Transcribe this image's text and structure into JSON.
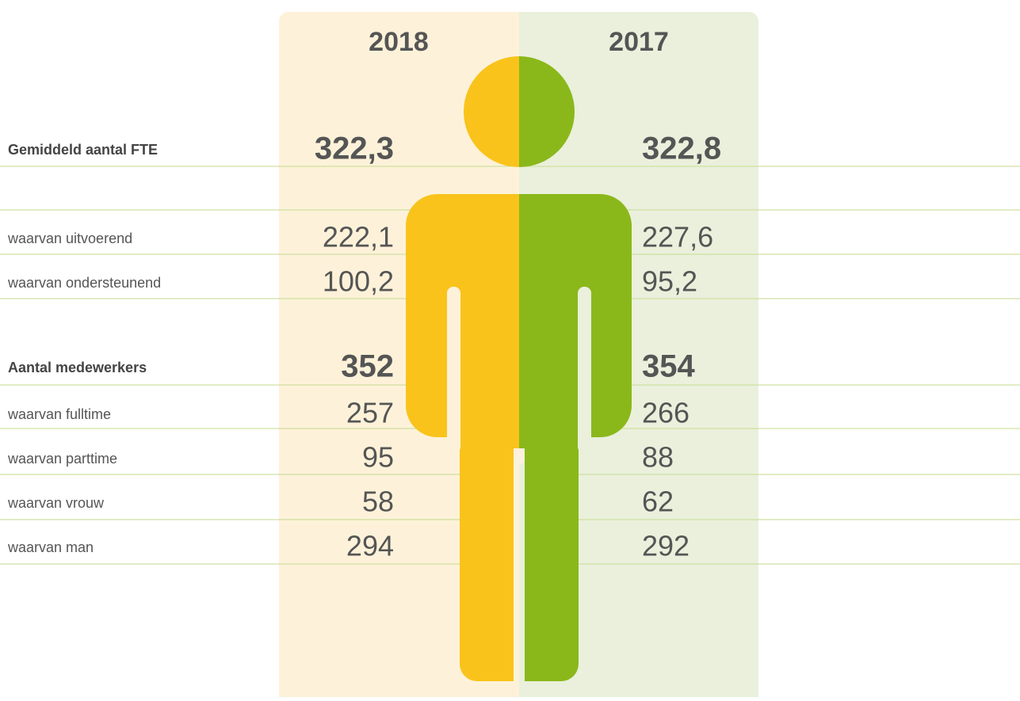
{
  "columns": [
    "2018",
    "2017"
  ],
  "rows": [
    {
      "label": "Gemiddeld aantal FTE",
      "values": [
        "322,3",
        "322,8"
      ],
      "bold": true
    },
    {
      "label": "waarvan uitvoerend",
      "values": [
        "222,1",
        "227,6"
      ],
      "bold": false
    },
    {
      "label": "waarvan ondersteunend",
      "values": [
        "100,2",
        "95,2"
      ],
      "bold": false
    },
    {
      "label": "Aantal medewerkers",
      "values": [
        "352",
        "354"
      ],
      "bold": true
    },
    {
      "label": "waarvan fulltime",
      "values": [
        "257",
        "266"
      ],
      "bold": false
    },
    {
      "label": "waarvan parttime",
      "values": [
        "95",
        "88"
      ],
      "bold": false
    },
    {
      "label": "waarvan vrouw",
      "values": [
        "58",
        "62"
      ],
      "bold": false
    },
    {
      "label": "waarvan man",
      "values": [
        "294",
        "292"
      ],
      "bold": false
    }
  ]
}
